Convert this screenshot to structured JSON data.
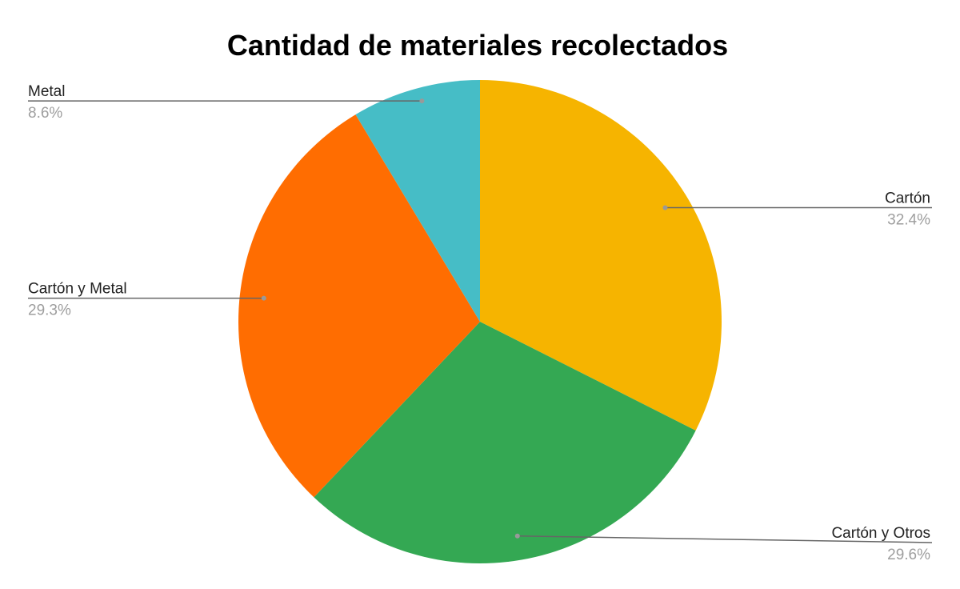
{
  "chart_data": {
    "type": "pie",
    "title": "Cantidad de materiales recolectados",
    "start": "top",
    "direction": "clockwise",
    "slices": [
      {
        "label": "Cartón",
        "value": 32.4,
        "display": "32.4%",
        "color": "#F6B400",
        "side": "right"
      },
      {
        "label": "Cartón y Otros",
        "value": 29.6,
        "display": "29.6%",
        "color": "#34A853",
        "side": "right"
      },
      {
        "label": "Cartón y Metal",
        "value": 29.3,
        "display": "29.3%",
        "color": "#FF6D01",
        "side": "left"
      },
      {
        "label": "Metal",
        "value": 8.6,
        "display": "8.6%",
        "color": "#46BDC6",
        "side": "left"
      }
    ],
    "legend": "labels with leader lines"
  }
}
